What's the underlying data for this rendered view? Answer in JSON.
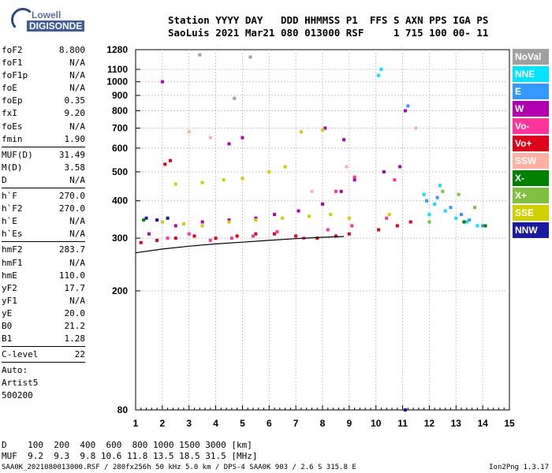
{
  "logo": {
    "line1": "Lowell",
    "line2": "DIGISONDE"
  },
  "header": {
    "line1": "Station YYYY DAY   DDD HHMMSS P1  FFS S AXN PPS IGA PS",
    "line2": "SaoLuis 2021 Mar21 080 013000 RSF     1 715 100 00- 11"
  },
  "params_group1": [
    {
      "name": "foF2",
      "value": "8.800"
    },
    {
      "name": "foF1",
      "value": "N/A"
    },
    {
      "name": "foF1p",
      "value": "N/A"
    },
    {
      "name": "foE",
      "value": "N/A"
    },
    {
      "name": "foEp",
      "value": "0.35"
    },
    {
      "name": "fxI",
      "value": "9.20"
    },
    {
      "name": "foEs",
      "value": "N/A"
    },
    {
      "name": "fmin",
      "value": "1.90"
    }
  ],
  "params_group2": [
    {
      "name": "MUF(D)",
      "value": "31.49"
    },
    {
      "name": "M(D)",
      "value": "3.58"
    },
    {
      "name": "D",
      "value": "N/A"
    }
  ],
  "params_group3": [
    {
      "name": "h`F",
      "value": "270.0"
    },
    {
      "name": "h`F2",
      "value": "270.0"
    },
    {
      "name": "h`E",
      "value": "N/A"
    },
    {
      "name": "h`Es",
      "value": "N/A"
    }
  ],
  "params_group4": [
    {
      "name": "hmF2",
      "value": "283.7"
    },
    {
      "name": "hmF1",
      "value": "N/A"
    },
    {
      "name": "hmE",
      "value": "110.0"
    },
    {
      "name": "yF2",
      "value": "17.7"
    },
    {
      "name": "yF1",
      "value": "N/A"
    },
    {
      "name": "yE",
      "value": "20.0"
    },
    {
      "name": "B0",
      "value": "21.2"
    },
    {
      "name": "B1",
      "value": "1.28"
    }
  ],
  "params_group5": [
    {
      "name": "C-level",
      "value": "22"
    }
  ],
  "auto": {
    "line1": "Auto:",
    "line2": "Artist5",
    "line3": "500200"
  },
  "footer": {
    "line1": "D    100  200  400  600  800 1000 1500 3000 [km]",
    "line2": "MUF  9.2  9.3  9.8 10.6 11.8 13.5 18.5 31.5 [MHz]"
  },
  "bottom_text": "SAA0K_2021080013000.RSF / 280fx256h 50 kHz 5.0 km / DPS-4 SAA0K 903 / 2.6 S 315.8 E",
  "version": "Ion2Png 1.3.17",
  "legend": [
    {
      "label": "NoVal",
      "color": "#a0a0a0"
    },
    {
      "label": "NNE",
      "color": "#00e5ff"
    },
    {
      "label": "E",
      "color": "#3399ff"
    },
    {
      "label": "W",
      "color": "#b000b0"
    },
    {
      "label": "Vo-",
      "color": "#ff3399"
    },
    {
      "label": "Vo+",
      "color": "#e0001a"
    },
    {
      "label": "SSW",
      "color": "#ffb0a0"
    },
    {
      "label": "X-",
      "color": "#008000"
    },
    {
      "label": "X+",
      "color": "#80c040"
    },
    {
      "label": "SSE",
      "color": "#d0d000"
    },
    {
      "label": "NNW",
      "color": "#1a1aa0"
    }
  ],
  "chart_data": {
    "type": "scatter",
    "title": "",
    "xlabel": "",
    "ylabel": "",
    "xlim": [
      1,
      15
    ],
    "ylim": [
      80,
      1280
    ],
    "y_scale": "log",
    "grid": true,
    "x_ticks": [
      1,
      2,
      3,
      4,
      5,
      6,
      7,
      8,
      9,
      10,
      11,
      12,
      13,
      14,
      15
    ],
    "y_ticks": [
      80,
      200,
      300,
      400,
      500,
      600,
      700,
      800,
      900,
      1000,
      1100,
      1280
    ],
    "series": [
      {
        "name": "Vo+",
        "color": "#e0001a",
        "points": [
          [
            1.2,
            290
          ],
          [
            1.8,
            295
          ],
          [
            2.5,
            300
          ],
          [
            3.2,
            305
          ],
          [
            4.0,
            300
          ],
          [
            4.8,
            305
          ],
          [
            5.5,
            310
          ],
          [
            6.2,
            310
          ],
          [
            7.0,
            305
          ],
          [
            7.8,
            300
          ],
          [
            8.5,
            305
          ],
          [
            9.0,
            310
          ],
          [
            10.1,
            320
          ],
          [
            10.8,
            330
          ],
          [
            11.3,
            340
          ],
          [
            2.1,
            530
          ],
          [
            2.3,
            545
          ]
        ]
      },
      {
        "name": "W",
        "color": "#b000b0",
        "points": [
          [
            1.5,
            310
          ],
          [
            2.5,
            330
          ],
          [
            3.5,
            340
          ],
          [
            4.5,
            345
          ],
          [
            5.5,
            350
          ],
          [
            6.2,
            360
          ],
          [
            7.1,
            370
          ],
          [
            8.0,
            390
          ],
          [
            8.7,
            430
          ],
          [
            9.2,
            470
          ],
          [
            10.3,
            500
          ],
          [
            10.9,
            520
          ],
          [
            11.1,
            800
          ],
          [
            2.0,
            1000
          ],
          [
            4.5,
            620
          ],
          [
            5.0,
            650
          ],
          [
            8.1,
            700
          ],
          [
            8.8,
            640
          ]
        ]
      },
      {
        "name": "SSE",
        "color": "#d0d000",
        "points": [
          [
            2.0,
            340
          ],
          [
            2.8,
            335
          ],
          [
            3.5,
            330
          ],
          [
            4.5,
            340
          ],
          [
            5.5,
            345
          ],
          [
            6.5,
            350
          ],
          [
            7.5,
            355
          ],
          [
            8.3,
            360
          ],
          [
            9.0,
            350
          ],
          [
            10.5,
            360
          ],
          [
            2.5,
            455
          ],
          [
            3.5,
            460
          ],
          [
            4.3,
            470
          ],
          [
            5.0,
            475
          ],
          [
            6.0,
            500
          ],
          [
            6.6,
            520
          ],
          [
            7.2,
            680
          ],
          [
            8.0,
            690
          ]
        ]
      },
      {
        "name": "NNE",
        "color": "#00e5ff",
        "points": [
          [
            10.2,
            1100
          ],
          [
            10.1,
            1050
          ],
          [
            12.2,
            390
          ],
          [
            12.6,
            370
          ],
          [
            13.0,
            350
          ],
          [
            13.4,
            340
          ],
          [
            13.8,
            330
          ],
          [
            12.4,
            450
          ],
          [
            11.8,
            420
          ],
          [
            12.0,
            360
          ]
        ]
      },
      {
        "name": "Vo-",
        "color": "#ff3399",
        "points": [
          [
            2.2,
            300
          ],
          [
            3.0,
            310
          ],
          [
            3.8,
            295
          ],
          [
            4.6,
            300
          ],
          [
            5.4,
            305
          ],
          [
            6.3,
            315
          ],
          [
            7.3,
            300
          ],
          [
            8.2,
            320
          ],
          [
            9.1,
            330
          ],
          [
            10.4,
            350
          ],
          [
            8.5,
            430
          ],
          [
            9.2,
            480
          ],
          [
            10.7,
            470
          ]
        ]
      },
      {
        "name": "E",
        "color": "#3399ff",
        "points": [
          [
            11.9,
            400
          ],
          [
            12.3,
            410
          ],
          [
            12.8,
            380
          ],
          [
            13.2,
            360
          ],
          [
            13.5,
            345
          ],
          [
            14.0,
            330
          ],
          [
            11.2,
            830
          ]
        ]
      },
      {
        "name": "NNW",
        "color": "#1a1aa0",
        "points": [
          [
            1.4,
            350
          ],
          [
            1.8,
            345
          ],
          [
            2.2,
            350
          ],
          [
            11.1,
            80
          ]
        ]
      },
      {
        "name": "X+",
        "color": "#80c040",
        "points": [
          [
            12.5,
            430
          ],
          [
            13.1,
            420
          ],
          [
            13.7,
            380
          ],
          [
            12.0,
            340
          ]
        ]
      },
      {
        "name": "X-",
        "color": "#008000",
        "points": [
          [
            1.3,
            345
          ],
          [
            13.3,
            340
          ],
          [
            14.1,
            330
          ]
        ]
      },
      {
        "name": "SSW",
        "color": "#ffb0a0",
        "points": [
          [
            3.0,
            680
          ],
          [
            3.8,
            650
          ],
          [
            7.6,
            430
          ],
          [
            8.9,
            520
          ],
          [
            11.5,
            700
          ]
        ]
      },
      {
        "name": "NoVal",
        "color": "#a0a0a0",
        "points": [
          [
            3.4,
            1230
          ],
          [
            5.3,
            1210
          ],
          [
            4.7,
            880
          ]
        ]
      }
    ],
    "trace": [
      [
        1,
        268
      ],
      [
        2,
        276
      ],
      [
        3,
        282
      ],
      [
        4,
        287
      ],
      [
        5,
        291
      ],
      [
        6,
        295
      ],
      [
        7,
        299
      ],
      [
        8,
        302
      ],
      [
        8.8,
        304
      ]
    ]
  }
}
